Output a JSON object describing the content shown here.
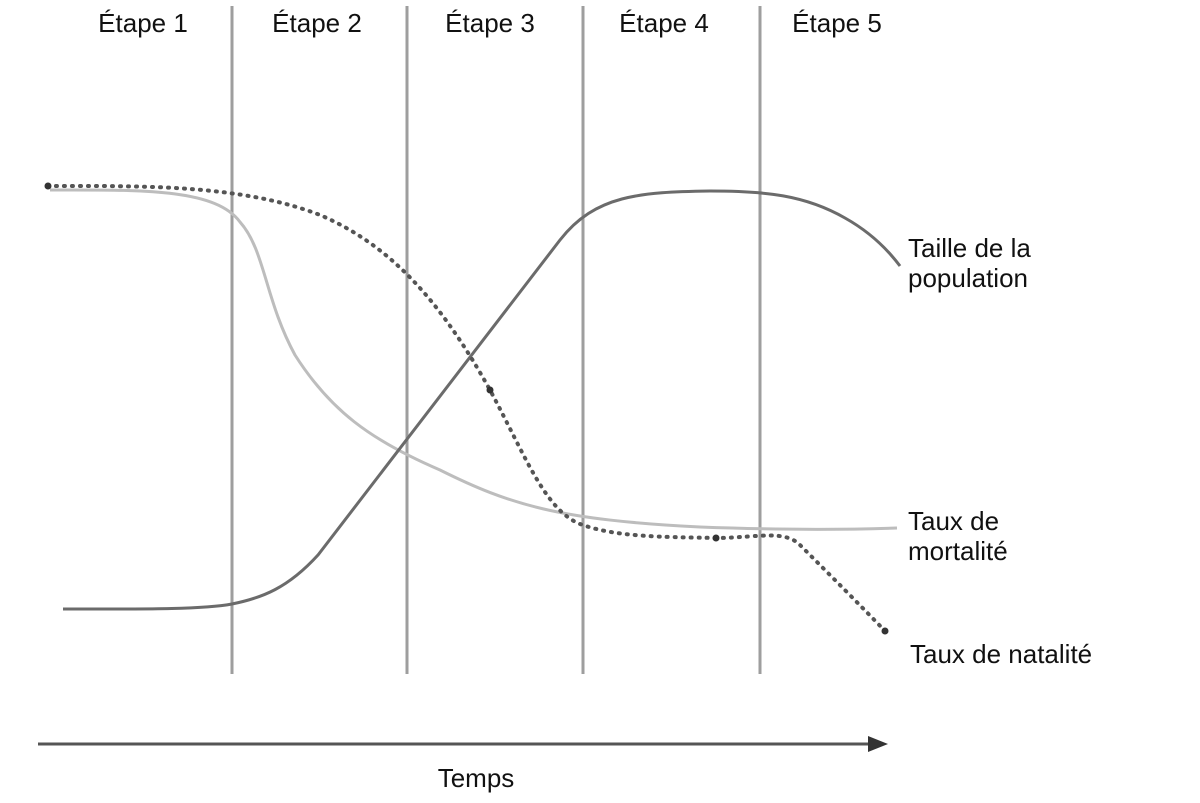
{
  "stages": [
    "Étape 1",
    "Étape 2",
    "Étape 3",
    "Étape 4",
    "Étape 5"
  ],
  "x_axis_label": "Temps",
  "curves": {
    "population": {
      "label_line1": "Taille de la",
      "label_line2": "population",
      "color": "#6b6b6b",
      "style": "solid"
    },
    "mortality": {
      "label_line1": "Taux de",
      "label_line2": "mortalité",
      "color": "#bdbdbd",
      "style": "solid"
    },
    "natality": {
      "label_line1": "Taux de natalité",
      "color": "#555555",
      "style": "dotted"
    }
  },
  "colors": {
    "stage_divider": "#9e9e9e",
    "axis_arrow": "#555555",
    "text": "#111111"
  }
}
